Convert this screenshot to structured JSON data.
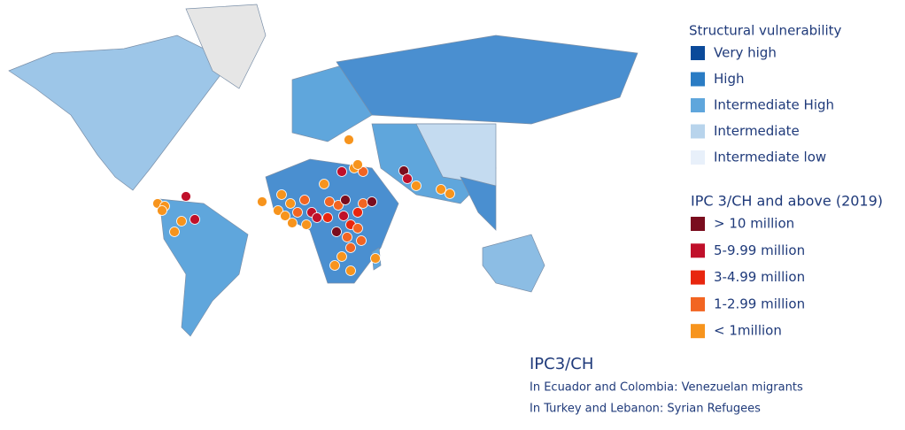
{
  "legend_vulnerability": {
    "title": "Structural vulnerability",
    "items": [
      {
        "label": "Very high",
        "color": "#0b4a9a"
      },
      {
        "label": "High",
        "color": "#2a7cc4"
      },
      {
        "label": "Intermediate High",
        "color": "#5fa6dc"
      },
      {
        "label": "Intermediate",
        "color": "#b8d4ec"
      },
      {
        "label": "Intermediate low",
        "color": "#e8f0fa"
      }
    ]
  },
  "legend_ipc": {
    "title": "IPC 3/CH and above (2019)",
    "items": [
      {
        "label": "> 10 million",
        "color": "#7a0d1e"
      },
      {
        "label": "5-9.99 million",
        "color": "#c0102a"
      },
      {
        "label": "3-4.99 million",
        "color": "#e8260f"
      },
      {
        "label": "1-2.99 million",
        "color": "#f26522"
      },
      {
        "label": "< 1million",
        "color": "#f7941d"
      }
    ]
  },
  "notes": {
    "title": "IPC3/CH",
    "lines": [
      "In Ecuador and Colombia: Venezuelan migrants",
      "In Turkey and Lebanon: Syrian Refugees"
    ]
  }
}
